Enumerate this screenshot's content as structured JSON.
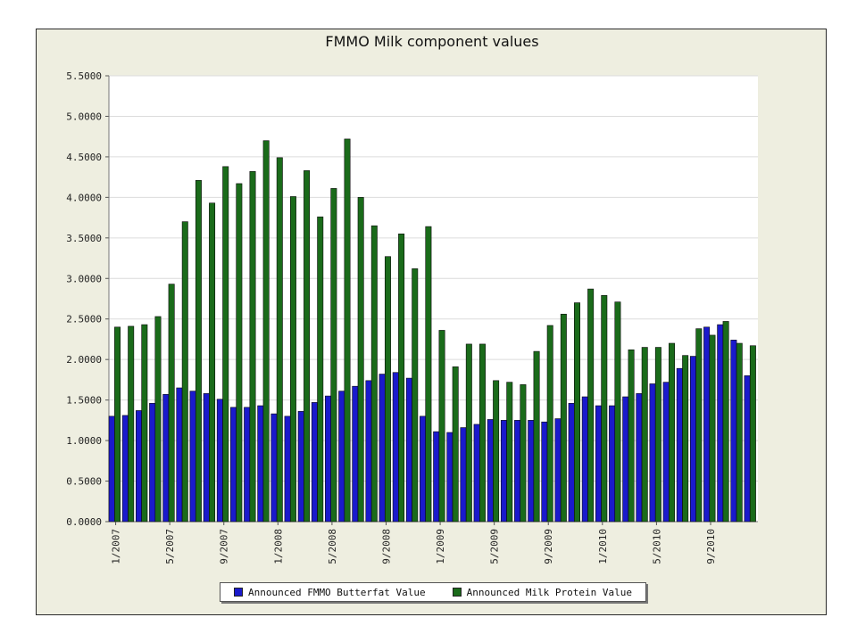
{
  "chart_data": {
    "type": "bar",
    "title": "FMMO Milk component values",
    "xlabel": "",
    "ylabel": "",
    "ylim": [
      0,
      5.5
    ],
    "yticks": [
      "0.0000",
      "0.5000",
      "1.0000",
      "1.5000",
      "2.0000",
      "2.5000",
      "3.0000",
      "3.5000",
      "4.0000",
      "4.5000",
      "5.0000",
      "5.5000"
    ],
    "grid": true,
    "legend_position": "bottom",
    "x_tick_labels": [
      {
        "index": 0,
        "label": "1/2007"
      },
      {
        "index": 4,
        "label": "5/2007"
      },
      {
        "index": 8,
        "label": "9/2007"
      },
      {
        "index": 12,
        "label": "1/2008"
      },
      {
        "index": 16,
        "label": "5/2008"
      },
      {
        "index": 20,
        "label": "9/2008"
      },
      {
        "index": 24,
        "label": "1/2009"
      },
      {
        "index": 28,
        "label": "5/2009"
      },
      {
        "index": 32,
        "label": "9/2009"
      },
      {
        "index": 36,
        "label": "1/2010"
      },
      {
        "index": 40,
        "label": "5/2010"
      },
      {
        "index": 44,
        "label": "9/2010"
      }
    ],
    "categories": [
      "1/2007",
      "2/2007",
      "3/2007",
      "4/2007",
      "5/2007",
      "6/2007",
      "7/2007",
      "8/2007",
      "9/2007",
      "10/2007",
      "11/2007",
      "12/2007",
      "1/2008",
      "2/2008",
      "3/2008",
      "4/2008",
      "5/2008",
      "6/2008",
      "7/2008",
      "8/2008",
      "9/2008",
      "10/2008",
      "11/2008",
      "12/2008",
      "1/2009",
      "2/2009",
      "3/2009",
      "4/2009",
      "5/2009",
      "6/2009",
      "7/2009",
      "8/2009",
      "9/2009",
      "10/2009",
      "11/2009",
      "12/2009",
      "1/2010",
      "2/2010",
      "3/2010",
      "4/2010",
      "5/2010",
      "6/2010",
      "7/2010",
      "8/2010",
      "9/2010",
      "10/2010",
      "11/2010",
      "12/2010"
    ],
    "series": [
      {
        "name": "Announced FMMO Butterfat Value",
        "color": "#1a1acc",
        "values": [
          1.3,
          1.31,
          1.37,
          1.46,
          1.57,
          1.65,
          1.61,
          1.58,
          1.51,
          1.41,
          1.41,
          1.43,
          1.33,
          1.3,
          1.36,
          1.47,
          1.55,
          1.61,
          1.67,
          1.74,
          1.82,
          1.84,
          1.77,
          1.3,
          1.11,
          1.1,
          1.16,
          1.2,
          1.26,
          1.25,
          1.25,
          1.25,
          1.23,
          1.27,
          1.46,
          1.54,
          1.43,
          1.43,
          1.54,
          1.58,
          1.7,
          1.72,
          1.89,
          2.04,
          2.4,
          2.43,
          2.24,
          1.8
        ]
      },
      {
        "name": "Announced Milk Protein Value",
        "color": "#1a6b1a",
        "values": [
          2.4,
          2.41,
          2.43,
          2.53,
          2.93,
          3.7,
          4.21,
          3.93,
          4.38,
          4.17,
          4.32,
          4.7,
          4.49,
          4.01,
          4.33,
          3.76,
          4.11,
          4.72,
          4.0,
          3.65,
          3.27,
          3.55,
          3.12,
          3.64,
          2.36,
          1.91,
          2.19,
          2.19,
          1.74,
          1.72,
          1.69,
          2.1,
          2.42,
          2.56,
          2.7,
          2.87,
          2.79,
          2.71,
          2.12,
          2.15,
          2.15,
          2.2,
          2.05,
          2.38,
          2.3,
          2.47,
          2.2,
          2.17
        ]
      }
    ]
  }
}
